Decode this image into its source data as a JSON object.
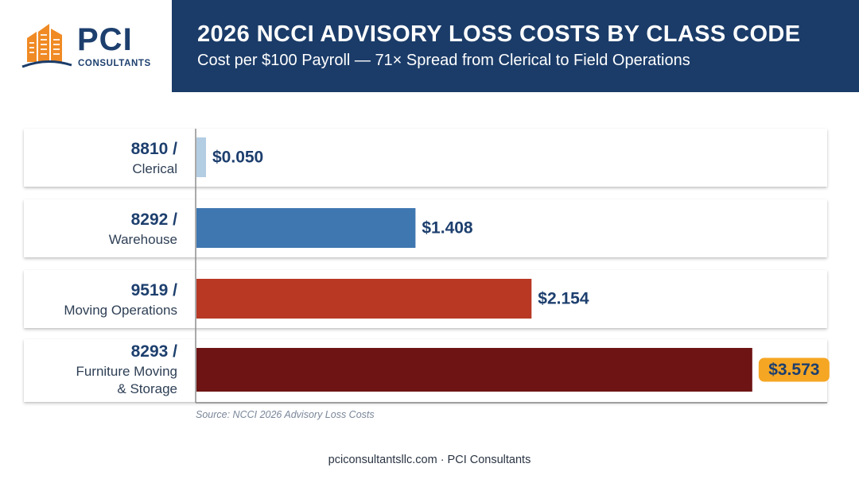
{
  "brand": {
    "name": "PCI",
    "subtitle": "CONSULTANTS",
    "colors": {
      "navy": "#1b3c69",
      "orange": "#f08a24"
    }
  },
  "header": {
    "title": "2026 NCCI ADVISORY LOSS COSTS BY CLASS CODE",
    "subtitle": "Cost per $100 Payroll — 71× Spread from Clerical to Field Operations"
  },
  "chart_data": {
    "type": "bar",
    "orientation": "horizontal",
    "categories": [
      {
        "code": "8810 /",
        "desc_lines": [
          "Clerical"
        ]
      },
      {
        "code": "8292 /",
        "desc_lines": [
          "Warehouse"
        ]
      },
      {
        "code": "9519 /",
        "desc_lines": [
          "Moving Operations"
        ]
      },
      {
        "code": "8293 /",
        "desc_lines": [
          "Furniture Moving",
          "& Storage"
        ]
      }
    ],
    "values": [
      0.05,
      1.408,
      2.154,
      3.573
    ],
    "value_labels": [
      "$0.050",
      "$1.408",
      "$2.154",
      "$3.573"
    ],
    "colors": [
      "#b3cde3",
      "#3f77b1",
      "#b83824",
      "#6e1414"
    ],
    "highlight_index": 3,
    "highlight_color": "#f5a623",
    "xlim": [
      0,
      3.85
    ],
    "grid": false
  },
  "source": "Source: NCCI 2026 Advisory Loss Costs",
  "footer": "pciconsultantsllc.com · PCI Consultants"
}
